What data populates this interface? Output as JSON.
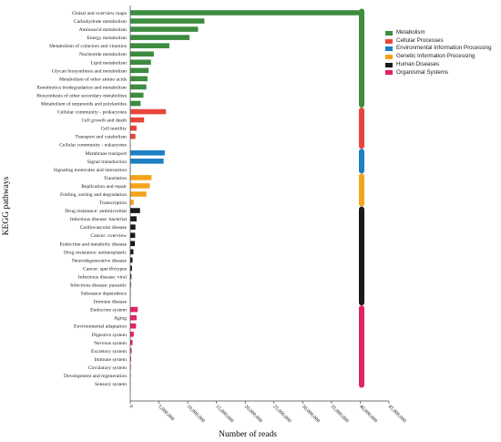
{
  "chart_data": {
    "type": "bar",
    "orientation": "horizontal",
    "title": "",
    "xlabel": "Number of reads",
    "ylabel": "KEGG pathways",
    "xlim": [
      0,
      45000000
    ],
    "x_ticks": [
      "0",
      "5,000,000",
      "10,000,000",
      "15,000,000",
      "20,000,000",
      "25,000,000",
      "30,000,000",
      "35,000,000",
      "40,000,000",
      "45,000,000"
    ],
    "grid": false,
    "legend_placement": "top-right",
    "groups": [
      {
        "name": "Metabolism",
        "color": "#3d8c40",
        "items": [
          {
            "label": "Global and overview maps",
            "value": 39800000
          },
          {
            "label": "Carbohydrate metabolism",
            "value": 12900000
          },
          {
            "label": "Aminoacid metabolism",
            "value": 11800000
          },
          {
            "label": "Energy metabolism",
            "value": 10300000
          },
          {
            "label": "Metabolism of cofactors and vitamins",
            "value": 6800000
          },
          {
            "label": "Nucleotide metabolism",
            "value": 4100000
          },
          {
            "label": "Lipid metabolism",
            "value": 3600000
          },
          {
            "label": "Glycan biosynthesis and metabolism",
            "value": 3200000
          },
          {
            "label": "Metabolism of other amino acids",
            "value": 3000000
          },
          {
            "label": "Xenobiotics biodegradation and metabolism",
            "value": 2800000
          },
          {
            "label": "Biosynthesis of other secondary metabolites",
            "value": 2300000
          },
          {
            "label": "Metabolism of terpenoids and polyketides",
            "value": 1800000
          }
        ]
      },
      {
        "name": "Cellular Processes",
        "color": "#e8453c",
        "items": [
          {
            "label": "Cellular community - prokaryotes",
            "value": 6200000
          },
          {
            "label": "Cell growth and death",
            "value": 2400000
          },
          {
            "label": "Cell motility",
            "value": 1100000
          },
          {
            "label": "Transport and catabolism",
            "value": 900000
          },
          {
            "label": "Cellular community - eukaryotes",
            "value": 50000
          }
        ]
      },
      {
        "name": "Environmental Information Processing",
        "color": "#1f7fc4",
        "items": [
          {
            "label": "Membrane transport",
            "value": 6000000
          },
          {
            "label": "Signal transduction",
            "value": 5800000
          },
          {
            "label": "Signaling molecules and interaction",
            "value": 80000
          }
        ]
      },
      {
        "name": "Genetic Information Processing",
        "color": "#f5a31a",
        "items": [
          {
            "label": "Translation",
            "value": 3700000
          },
          {
            "label": "Replication and repair",
            "value": 3400000
          },
          {
            "label": "Folding, sorting and degradation",
            "value": 2800000
          },
          {
            "label": "Transcription",
            "value": 600000
          }
        ]
      },
      {
        "name": "Human Diseases",
        "color": "#1a1a1a",
        "items": [
          {
            "label": "Drug resistance: antimicrobial",
            "value": 1700000
          },
          {
            "label": "Infectious disease: bacterial",
            "value": 1100000
          },
          {
            "label": "Cardiovascular disease",
            "value": 900000
          },
          {
            "label": "Cancer: overview",
            "value": 850000
          },
          {
            "label": "Endocrine and metabolic disease",
            "value": 800000
          },
          {
            "label": "Drug resistance: antineoplastic",
            "value": 550000
          },
          {
            "label": "Neurodegenerative disease",
            "value": 400000
          },
          {
            "label": "Cancer: specifictypes",
            "value": 300000
          },
          {
            "label": "Infectious disease: viral",
            "value": 200000
          },
          {
            "label": "Infectious disease: parasitic",
            "value": 120000
          },
          {
            "label": "Substance dependence",
            "value": 50000
          },
          {
            "label": "Immune disease",
            "value": 40000
          }
        ]
      },
      {
        "name": "Organismal Systems",
        "color": "#e0245e",
        "items": [
          {
            "label": "Endocrine system",
            "value": 1300000
          },
          {
            "label": "Aging",
            "value": 1100000
          },
          {
            "label": "Environmental adaptation",
            "value": 1000000
          },
          {
            "label": "Digestive system",
            "value": 600000
          },
          {
            "label": "Nervous system",
            "value": 400000
          },
          {
            "label": "Excretory system",
            "value": 250000
          },
          {
            "label": "Immune system",
            "value": 150000
          },
          {
            "label": "Circulatory system",
            "value": 100000
          },
          {
            "label": "Development and regeneration",
            "value": 80000
          },
          {
            "label": "Sensory system",
            "value": 50000
          }
        ]
      }
    ]
  }
}
